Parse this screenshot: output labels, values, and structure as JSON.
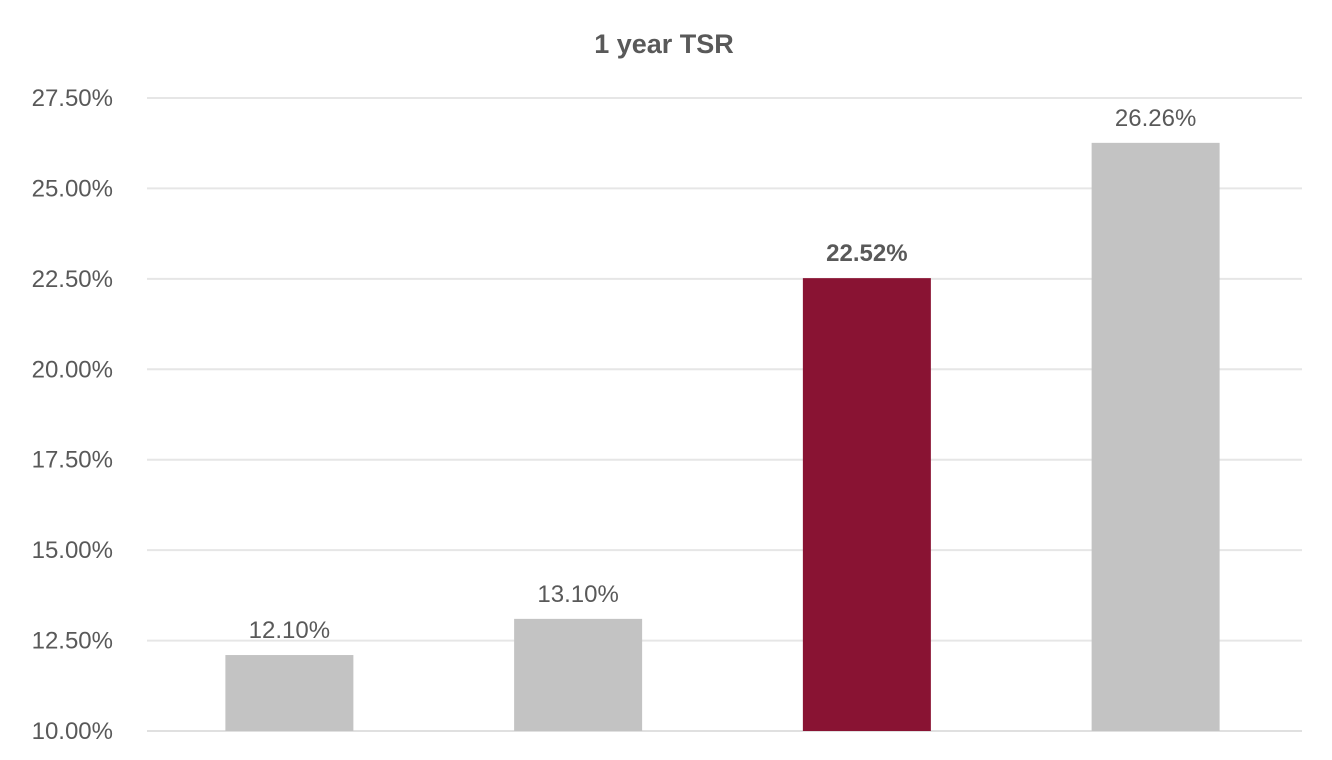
{
  "chart_data": {
    "type": "bar",
    "title": "1 year TSR",
    "categories": [
      "",
      "",
      "",
      ""
    ],
    "values": [
      12.1,
      13.1,
      22.52,
      26.26
    ],
    "data_labels": [
      "12.10%",
      "13.10%",
      "22.52%",
      "26.26%"
    ],
    "highlight_index": 2,
    "colors": {
      "default_bar": "#c3c3c3",
      "highlight_bar": "#891333",
      "text": "#595959",
      "grid": "#e6e6e6"
    },
    "ylim": [
      10,
      27.5
    ],
    "yticks": [
      10,
      12.5,
      15,
      17.5,
      20,
      22.5,
      25,
      27.5
    ],
    "ytick_labels": [
      "10.00%",
      "12.50%",
      "15.00%",
      "17.50%",
      "20.00%",
      "22.50%",
      "25.00%",
      "27.50%"
    ],
    "xlabel": "",
    "ylabel": "",
    "grid": true,
    "legend": "none"
  }
}
